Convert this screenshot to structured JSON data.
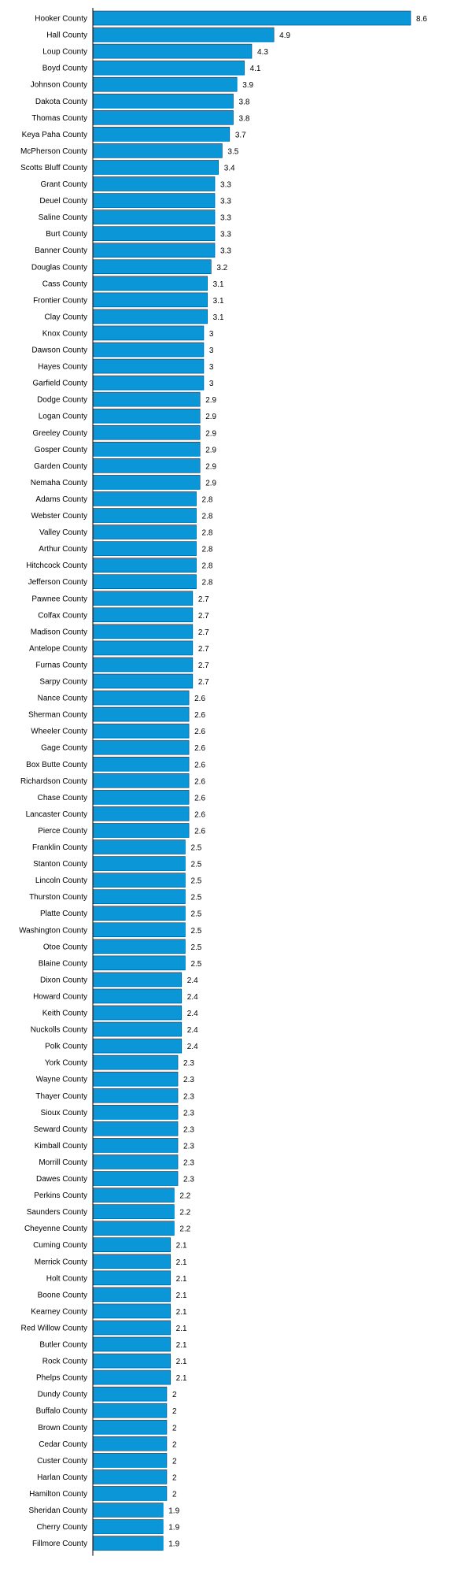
{
  "chart_data": {
    "type": "bar",
    "orientation": "horizontal",
    "bar_color": "#0b96d8",
    "categories": [
      "Hooker County",
      "Hall County",
      "Loup County",
      "Boyd County",
      "Johnson County",
      "Dakota County",
      "Thomas County",
      "Keya Paha County",
      "McPherson County",
      "Scotts Bluff County",
      "Grant County",
      "Deuel County",
      "Saline County",
      "Burt County",
      "Banner County",
      "Douglas County",
      "Cass County",
      "Frontier County",
      "Clay County",
      "Knox County",
      "Dawson County",
      "Hayes County",
      "Garfield County",
      "Dodge County",
      "Logan County",
      "Greeley County",
      "Gosper County",
      "Garden County",
      "Nemaha County",
      "Adams County",
      "Webster County",
      "Valley County",
      "Arthur County",
      "Hitchcock County",
      "Jefferson County",
      "Pawnee County",
      "Colfax County",
      "Madison County",
      "Antelope County",
      "Furnas County",
      "Sarpy County",
      "Nance County",
      "Sherman County",
      "Wheeler County",
      "Gage County",
      "Box Butte County",
      "Richardson County",
      "Chase County",
      "Lancaster County",
      "Pierce County",
      "Franklin County",
      "Stanton County",
      "Lincoln County",
      "Thurston County",
      "Platte County",
      "Washington County",
      "Otoe County",
      "Blaine County",
      "Dixon County",
      "Howard County",
      "Keith County",
      "Nuckolls County",
      "Polk County",
      "York County",
      "Wayne County",
      "Thayer County",
      "Sioux County",
      "Seward County",
      "Kimball County",
      "Morrill County",
      "Dawes County",
      "Perkins County",
      "Saunders County",
      "Cheyenne County",
      "Cuming County",
      "Merrick County",
      "Holt County",
      "Boone County",
      "Kearney County",
      "Red Willow County",
      "Butler County",
      "Rock County",
      "Phelps County",
      "Dundy County",
      "Buffalo County",
      "Brown County",
      "Cedar County",
      "Custer County",
      "Harlan County",
      "Hamilton County",
      "Sheridan County",
      "Cherry County",
      "Fillmore County"
    ],
    "values": [
      8.6,
      4.9,
      4.3,
      4.1,
      3.9,
      3.8,
      3.8,
      3.7,
      3.5,
      3.4,
      3.3,
      3.3,
      3.3,
      3.3,
      3.3,
      3.2,
      3.1,
      3.1,
      3.1,
      3,
      3,
      3,
      3,
      2.9,
      2.9,
      2.9,
      2.9,
      2.9,
      2.9,
      2.8,
      2.8,
      2.8,
      2.8,
      2.8,
      2.8,
      2.7,
      2.7,
      2.7,
      2.7,
      2.7,
      2.7,
      2.6,
      2.6,
      2.6,
      2.6,
      2.6,
      2.6,
      2.6,
      2.6,
      2.6,
      2.5,
      2.5,
      2.5,
      2.5,
      2.5,
      2.5,
      2.5,
      2.5,
      2.4,
      2.4,
      2.4,
      2.4,
      2.4,
      2.3,
      2.3,
      2.3,
      2.3,
      2.3,
      2.3,
      2.3,
      2.3,
      2.2,
      2.2,
      2.2,
      2.1,
      2.1,
      2.1,
      2.1,
      2.1,
      2.1,
      2.1,
      2.1,
      2.1,
      2,
      2,
      2,
      2,
      2,
      2,
      2,
      1.9,
      1.9,
      1.9
    ],
    "xlim": [
      0,
      8.6
    ],
    "title": "",
    "xlabel": "",
    "ylabel": "",
    "grid": false,
    "legend": "none"
  }
}
